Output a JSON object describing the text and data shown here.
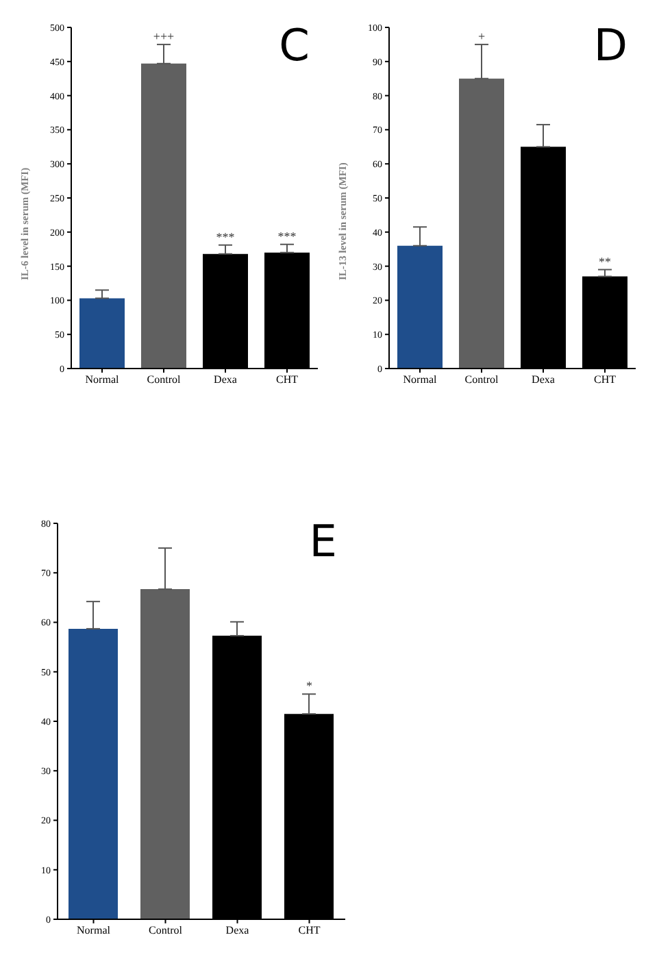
{
  "chart_data": [
    {
      "type": "bar",
      "title": "C",
      "ylabel": "IL-6 level in serum (MFI)",
      "categories": [
        "Normal",
        "Control",
        "Dexa",
        "CHT"
      ],
      "values": [
        103,
        447,
        168,
        170
      ],
      "colors": [
        "#1f4e8c",
        "#606060",
        "#000000",
        "#000000"
      ],
      "errors": [
        [
          103,
          115
        ],
        [
          447,
          475
        ],
        [
          168,
          181
        ],
        [
          170,
          182
        ]
      ],
      "ylim": [
        0,
        500
      ],
      "yticks": [
        0,
        50,
        100,
        150,
        200,
        250,
        300,
        350,
        400,
        450,
        500
      ],
      "grid": false,
      "legend": false,
      "annotations": [
        {
          "text": "+++",
          "x": "Control",
          "y": 475
        },
        {
          "text": "***",
          "x": "Dexa",
          "y": 181
        },
        {
          "text": "***",
          "x": "CHT",
          "y": 182
        }
      ]
    },
    {
      "type": "bar",
      "title": "D",
      "ylabel": "IL-13 level in serum (MFI)",
      "categories": [
        "Normal",
        "Control",
        "Dexa",
        "CHT"
      ],
      "values": [
        36,
        85,
        65,
        27
      ],
      "colors": [
        "#1f4e8c",
        "#606060",
        "#000000",
        "#000000"
      ],
      "errors": [
        [
          36,
          41.5
        ],
        [
          85,
          95
        ],
        [
          65,
          71.5
        ],
        [
          27,
          29
        ]
      ],
      "ylim": [
        0,
        100
      ],
      "yticks": [
        0,
        10,
        20,
        30,
        40,
        50,
        60,
        70,
        80,
        90,
        100
      ],
      "grid": false,
      "legend": false,
      "annotations": [
        {
          "text": "+",
          "x": "Control",
          "y": 95
        },
        {
          "text": "**",
          "x": "CHT",
          "y": 29
        }
      ]
    },
    {
      "type": "bar",
      "title": "E",
      "categories": [
        "Normal",
        "Control",
        "Dexa",
        "CHT"
      ],
      "values": [
        58.7,
        66.7,
        57.3,
        41.5
      ],
      "colors": [
        "#1f4e8c",
        "#606060",
        "#000000",
        "#000000"
      ],
      "errors": [
        [
          58.7,
          64.2
        ],
        [
          66.7,
          75
        ],
        [
          57.3,
          60.1
        ],
        [
          41.5,
          45.5
        ]
      ],
      "ylim": [
        0,
        80
      ],
      "yticks": [
        0,
        10,
        20,
        30,
        40,
        50,
        60,
        70,
        80
      ],
      "grid": false,
      "legend": false,
      "annotations": [
        {
          "text": "*",
          "x": "CHT",
          "y": 45.5
        }
      ]
    }
  ]
}
